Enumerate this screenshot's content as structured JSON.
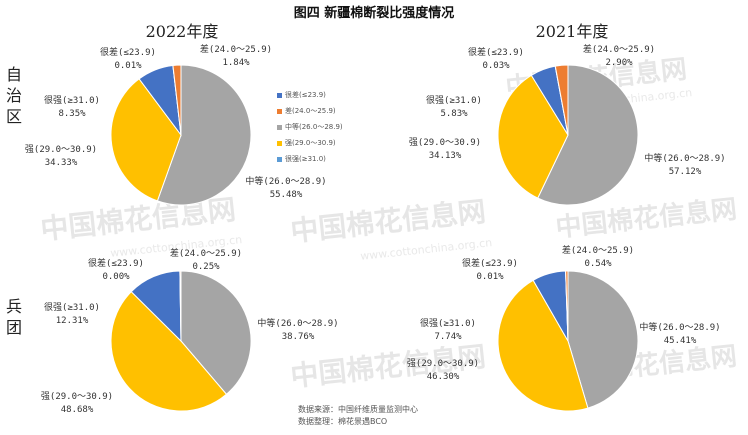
{
  "title": "图四 新疆棉断裂比强度情况",
  "years": [
    "2022年度",
    "2021年度"
  ],
  "rows": [
    "自治区",
    "兵团"
  ],
  "watermark": {
    "text": "中国棉花信息网",
    "url": "www.cottonchina.org.cn"
  },
  "source_lines": [
    "数据来源：中国纤维质量监测中心",
    "数据整理：棉花景遇BCO"
  ],
  "legend": [
    {
      "label": "很差(≤23.9)",
      "color": "#4472c4"
    },
    {
      "label": "差(24.0～25.9)",
      "color": "#ed7d31"
    },
    {
      "label": "中等(26.0～28.9)",
      "color": "#a5a5a5"
    },
    {
      "label": "强(29.0～30.9)",
      "color": "#ffc000"
    },
    {
      "label": "很强(≥31.0)",
      "color": "#5b9bd5"
    }
  ],
  "pie_labels": {
    "very_poor": "很差(≤23.9)",
    "poor": "差(24.0～25.9)",
    "medium": "中等(26.0～28.9)",
    "strong": "强(29.0～30.9)",
    "very_strong": "很强(≥31.0)"
  },
  "chart_data": [
    {
      "type": "pie",
      "title": "2022年度",
      "row": "自治区",
      "categories": [
        "很差(≤23.9)",
        "差(24.0～25.9)",
        "中等(26.0～28.9)",
        "强(29.0～30.9)",
        "很强(≥31.0)"
      ],
      "values": [
        0.01,
        1.84,
        55.48,
        34.33,
        8.35
      ],
      "value_labels": [
        "0.01%",
        "1.84%",
        "55.48%",
        "34.33%",
        "8.35%"
      ],
      "colors": [
        "#4472c4",
        "#ed7d31",
        "#a5a5a5",
        "#ffc000",
        "#4472c4"
      ]
    },
    {
      "type": "pie",
      "title": "2021年度",
      "row": "自治区",
      "categories": [
        "很差(≤23.9)",
        "差(24.0～25.9)",
        "中等(26.0～28.9)",
        "强(29.0～30.9)",
        "很强(≥31.0)"
      ],
      "values": [
        0.03,
        2.9,
        57.12,
        34.13,
        5.83
      ],
      "value_labels": [
        "0.03%",
        "2.90%",
        "57.12%",
        "34.13%",
        "5.83%"
      ],
      "colors": [
        "#4472c4",
        "#ed7d31",
        "#a5a5a5",
        "#ffc000",
        "#4472c4"
      ]
    },
    {
      "type": "pie",
      "title": "2022年度",
      "row": "兵团",
      "categories": [
        "很差(≤23.9)",
        "差(24.0～25.9)",
        "中等(26.0～28.9)",
        "强(29.0～30.9)",
        "很强(≥31.0)"
      ],
      "values": [
        0.0,
        0.25,
        38.76,
        48.68,
        12.31
      ],
      "value_labels": [
        "0.00%",
        "0.25%",
        "38.76%",
        "48.68%",
        "12.31%"
      ],
      "colors": [
        "#4472c4",
        "#ed7d31",
        "#a5a5a5",
        "#ffc000",
        "#4472c4"
      ]
    },
    {
      "type": "pie",
      "title": "2021年度",
      "row": "兵团",
      "categories": [
        "很差(≤23.9)",
        "差(24.0～25.9)",
        "中等(26.0～28.9)",
        "强(29.0～30.9)",
        "很强(≥31.0)"
      ],
      "values": [
        0.01,
        0.54,
        45.41,
        46.3,
        7.74
      ],
      "value_labels": [
        "0.01%",
        "0.54%",
        "45.41%",
        "46.30%",
        "7.74%"
      ],
      "colors": [
        "#4472c4",
        "#ed7d31",
        "#a5a5a5",
        "#ffc000",
        "#4472c4"
      ]
    }
  ]
}
